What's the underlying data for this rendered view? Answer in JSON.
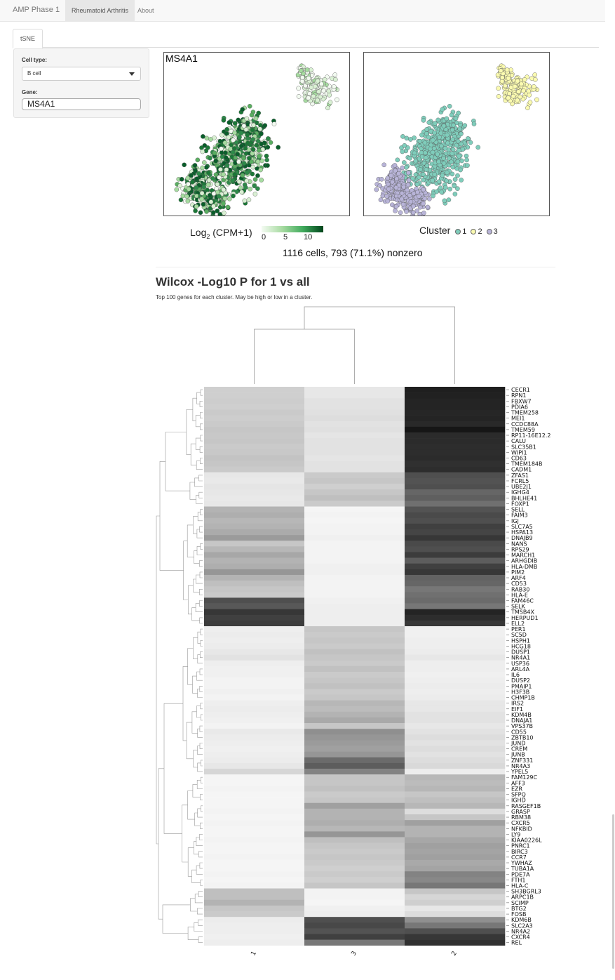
{
  "app": {
    "title": "AMP Phase 1",
    "nav": [
      {
        "label": "Rheumatoid Arthritis",
        "active": true
      },
      {
        "label": "About",
        "active": false
      }
    ]
  },
  "tabs": [
    {
      "label": "tSNE",
      "active": true
    }
  ],
  "sidebar": {
    "cell_type_label": "Cell type:",
    "cell_type_value": "B cell",
    "gene_label": "Gene:",
    "gene_value": "MS4A1"
  },
  "tsne": {
    "gene_panel_title": "MS4A1",
    "expression_legend_title_base": "Log",
    "expression_legend_title_sub": "2",
    "expression_legend_title_rest": " (CPM+1)",
    "expression_ticks": [
      "0",
      "5",
      "10"
    ],
    "cluster_legend_title": "Cluster",
    "clusters": [
      {
        "label": "1",
        "color": "#7fcdbb"
      },
      {
        "label": "2",
        "color": "#fafab0"
      },
      {
        "label": "3",
        "color": "#b8b4d8"
      }
    ],
    "stats_text": "1116 cells, 793 (71.1%) nonzero"
  },
  "heatmap": {
    "title": "Wilcox -Log10 P for 1 vs all",
    "subtitle": "Top 100 genes for each cluster. May be high or low in a cluster.",
    "columns": [
      "1",
      "3",
      "2"
    ],
    "genes": [
      "CECR1",
      "RPN1",
      "FBXW7",
      "PDIA6",
      "TMEM258",
      "MEI1",
      "CCDC88A",
      "TMEM59",
      "RP11-16E12.2",
      "CALU",
      "SLC35B1",
      "WIPI1",
      "CD63",
      "TMEM184B",
      "CADM1",
      "ZFAS1",
      "FCRL5",
      "UBE2J1",
      "IGHG4",
      "BHLHE41",
      "FOXP1",
      "SELL",
      "FAIM3",
      "IGJ",
      "SLC7A5",
      "HSPA13",
      "DNAJB9",
      "NANS",
      "RPS29",
      "MARCH1",
      "ARHGDIB",
      "HLA-DMB",
      "PIM2",
      "ARF4",
      "CD53",
      "RAB30",
      "HLA-E",
      "FAM46C",
      "SELK",
      "TMSB4X",
      "HERPUD1",
      "ELL2",
      "PER1",
      "SC5D",
      "HSPH1",
      "HCG18",
      "DUSP1",
      "NR4A1",
      "USP36",
      "ARL4A",
      "IL6",
      "DUSP2",
      "PMAIP1",
      "H3F3B",
      "CHMP1B",
      "IRS2",
      "EIF1",
      "KDM4B",
      "DNAJA1",
      "VPS37B",
      "CD55",
      "ZBTB10",
      "JUND",
      "CREM",
      "JUNB",
      "ZNF331",
      "NR4A3",
      "YPEL5",
      "FAM129C",
      "AFF3",
      "EZR",
      "SFPQ",
      "IGHD",
      "RASGEF1B",
      "GRASP",
      "RBM38",
      "CXCR5",
      "NFKBID",
      "LY9",
      "KIAA0226L",
      "PNRC1",
      "BIRC3",
      "CCR7",
      "YWHAZ",
      "TUBA1A",
      "PDE7A",
      "FTH1",
      "HLA-C",
      "SH3BGRL3",
      "ARPC1B",
      "SCIMP",
      "BTG2",
      "FOSB",
      "KDM6B",
      "SLC2A3",
      "NR4A2",
      "CXCR4",
      "REL"
    ],
    "values": [
      [
        0.18,
        0.08,
        0.92
      ],
      [
        0.18,
        0.08,
        0.91
      ],
      [
        0.19,
        0.1,
        0.9
      ],
      [
        0.18,
        0.1,
        0.9
      ],
      [
        0.2,
        0.11,
        0.89
      ],
      [
        0.19,
        0.12,
        0.9
      ],
      [
        0.2,
        0.1,
        0.88
      ],
      [
        0.22,
        0.11,
        0.96
      ],
      [
        0.21,
        0.09,
        0.87
      ],
      [
        0.22,
        0.1,
        0.87
      ],
      [
        0.2,
        0.1,
        0.86
      ],
      [
        0.21,
        0.1,
        0.86
      ],
      [
        0.23,
        0.09,
        0.87
      ],
      [
        0.22,
        0.1,
        0.85
      ],
      [
        0.2,
        0.1,
        0.86
      ],
      [
        0.08,
        0.2,
        0.72
      ],
      [
        0.07,
        0.22,
        0.7
      ],
      [
        0.09,
        0.18,
        0.72
      ],
      [
        0.08,
        0.22,
        0.62
      ],
      [
        0.07,
        0.25,
        0.65
      ],
      [
        0.08,
        0.2,
        0.58
      ],
      [
        0.3,
        0.02,
        0.7
      ],
      [
        0.32,
        0.03,
        0.74
      ],
      [
        0.28,
        0.02,
        0.72
      ],
      [
        0.3,
        0.03,
        0.78
      ],
      [
        0.33,
        0.03,
        0.76
      ],
      [
        0.4,
        0.04,
        0.82
      ],
      [
        0.22,
        0.03,
        0.74
      ],
      [
        0.28,
        0.03,
        0.72
      ],
      [
        0.35,
        0.03,
        0.8
      ],
      [
        0.3,
        0.03,
        0.66
      ],
      [
        0.32,
        0.04,
        0.78
      ],
      [
        0.42,
        0.04,
        0.82
      ],
      [
        0.3,
        0.03,
        0.64
      ],
      [
        0.25,
        0.03,
        0.62
      ],
      [
        0.22,
        0.03,
        0.55
      ],
      [
        0.2,
        0.03,
        0.58
      ],
      [
        0.72,
        0.04,
        0.6
      ],
      [
        0.68,
        0.05,
        0.55
      ],
      [
        0.82,
        0.05,
        0.9
      ],
      [
        0.78,
        0.05,
        0.86
      ],
      [
        0.8,
        0.05,
        0.82
      ],
      [
        0.05,
        0.22,
        0.04
      ],
      [
        0.06,
        0.2,
        0.04
      ],
      [
        0.05,
        0.22,
        0.05
      ],
      [
        0.06,
        0.2,
        0.05
      ],
      [
        0.08,
        0.24,
        0.06
      ],
      [
        0.1,
        0.22,
        0.08
      ],
      [
        0.05,
        0.2,
        0.05
      ],
      [
        0.04,
        0.24,
        0.05
      ],
      [
        0.04,
        0.2,
        0.04
      ],
      [
        0.03,
        0.22,
        0.05
      ],
      [
        0.03,
        0.24,
        0.06
      ],
      [
        0.04,
        0.2,
        0.05
      ],
      [
        0.03,
        0.22,
        0.06
      ],
      [
        0.05,
        0.28,
        0.08
      ],
      [
        0.06,
        0.26,
        0.08
      ],
      [
        0.05,
        0.3,
        0.1
      ],
      [
        0.04,
        0.34,
        0.1
      ],
      [
        0.03,
        0.22,
        0.08
      ],
      [
        0.07,
        0.45,
        0.1
      ],
      [
        0.06,
        0.42,
        0.12
      ],
      [
        0.05,
        0.4,
        0.1
      ],
      [
        0.04,
        0.38,
        0.12
      ],
      [
        0.05,
        0.42,
        0.1
      ],
      [
        0.06,
        0.6,
        0.12
      ],
      [
        0.08,
        0.66,
        0.14
      ],
      [
        0.15,
        0.5,
        0.06
      ],
      [
        0.02,
        0.22,
        0.28
      ],
      [
        0.02,
        0.22,
        0.26
      ],
      [
        0.03,
        0.24,
        0.28
      ],
      [
        0.02,
        0.2,
        0.22
      ],
      [
        0.02,
        0.22,
        0.25
      ],
      [
        0.02,
        0.38,
        0.28
      ],
      [
        0.03,
        0.3,
        0.12
      ],
      [
        0.02,
        0.3,
        0.22
      ],
      [
        0.03,
        0.32,
        0.38
      ],
      [
        0.02,
        0.28,
        0.3
      ],
      [
        0.02,
        0.42,
        0.3
      ],
      [
        0.03,
        0.25,
        0.35
      ],
      [
        0.02,
        0.22,
        0.38
      ],
      [
        0.02,
        0.2,
        0.36
      ],
      [
        0.03,
        0.22,
        0.38
      ],
      [
        0.02,
        0.2,
        0.34
      ],
      [
        0.02,
        0.18,
        0.36
      ],
      [
        0.03,
        0.2,
        0.5
      ],
      [
        0.02,
        0.18,
        0.48
      ],
      [
        0.03,
        0.22,
        0.55
      ],
      [
        0.25,
        0.03,
        0.22
      ],
      [
        0.25,
        0.03,
        0.15
      ],
      [
        0.3,
        0.02,
        0.18
      ],
      [
        0.22,
        0.04,
        0.08
      ],
      [
        0.2,
        0.05,
        0.12
      ],
      [
        0.06,
        0.72,
        0.45
      ],
      [
        0.05,
        0.75,
        0.55
      ],
      [
        0.05,
        0.7,
        0.72
      ],
      [
        0.04,
        0.78,
        0.82
      ],
      [
        0.05,
        0.55,
        0.85
      ]
    ]
  }
}
